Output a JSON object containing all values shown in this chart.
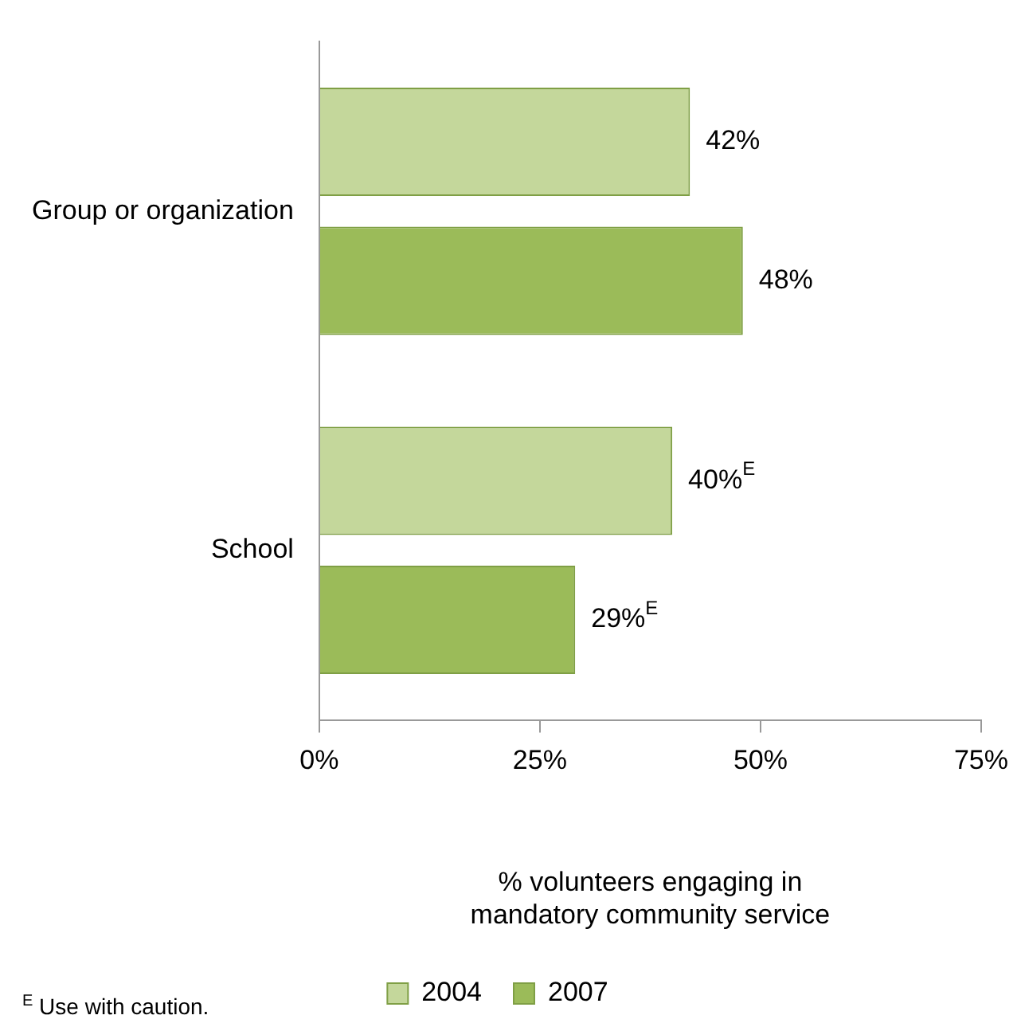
{
  "chart_data": {
    "type": "bar",
    "orientation": "horizontal",
    "categories": [
      "Group or organization",
      "School"
    ],
    "series": [
      {
        "name": "2004",
        "color": "#c4d79b",
        "values": [
          42,
          40
        ],
        "value_labels": [
          "42%",
          "40%$^{E}$"
        ]
      },
      {
        "name": "2007",
        "color": "#9bbb59",
        "values": [
          48,
          29
        ],
        "value_labels": [
          "48%",
          "29%$^{E}$"
        ]
      }
    ],
    "xlim": [
      0,
      75
    ],
    "xticks": [
      {
        "value": 0,
        "label": "0%"
      },
      {
        "value": 25,
        "label": "25%"
      },
      {
        "value": 50,
        "label": "50%"
      },
      {
        "value": 75,
        "label": "75%"
      }
    ],
    "xlabel": "% volunteers engaging in mandatory community service",
    "grid": false,
    "legend": "bottom",
    "annotations": [
      "$^{E}$ Use with caution."
    ]
  }
}
